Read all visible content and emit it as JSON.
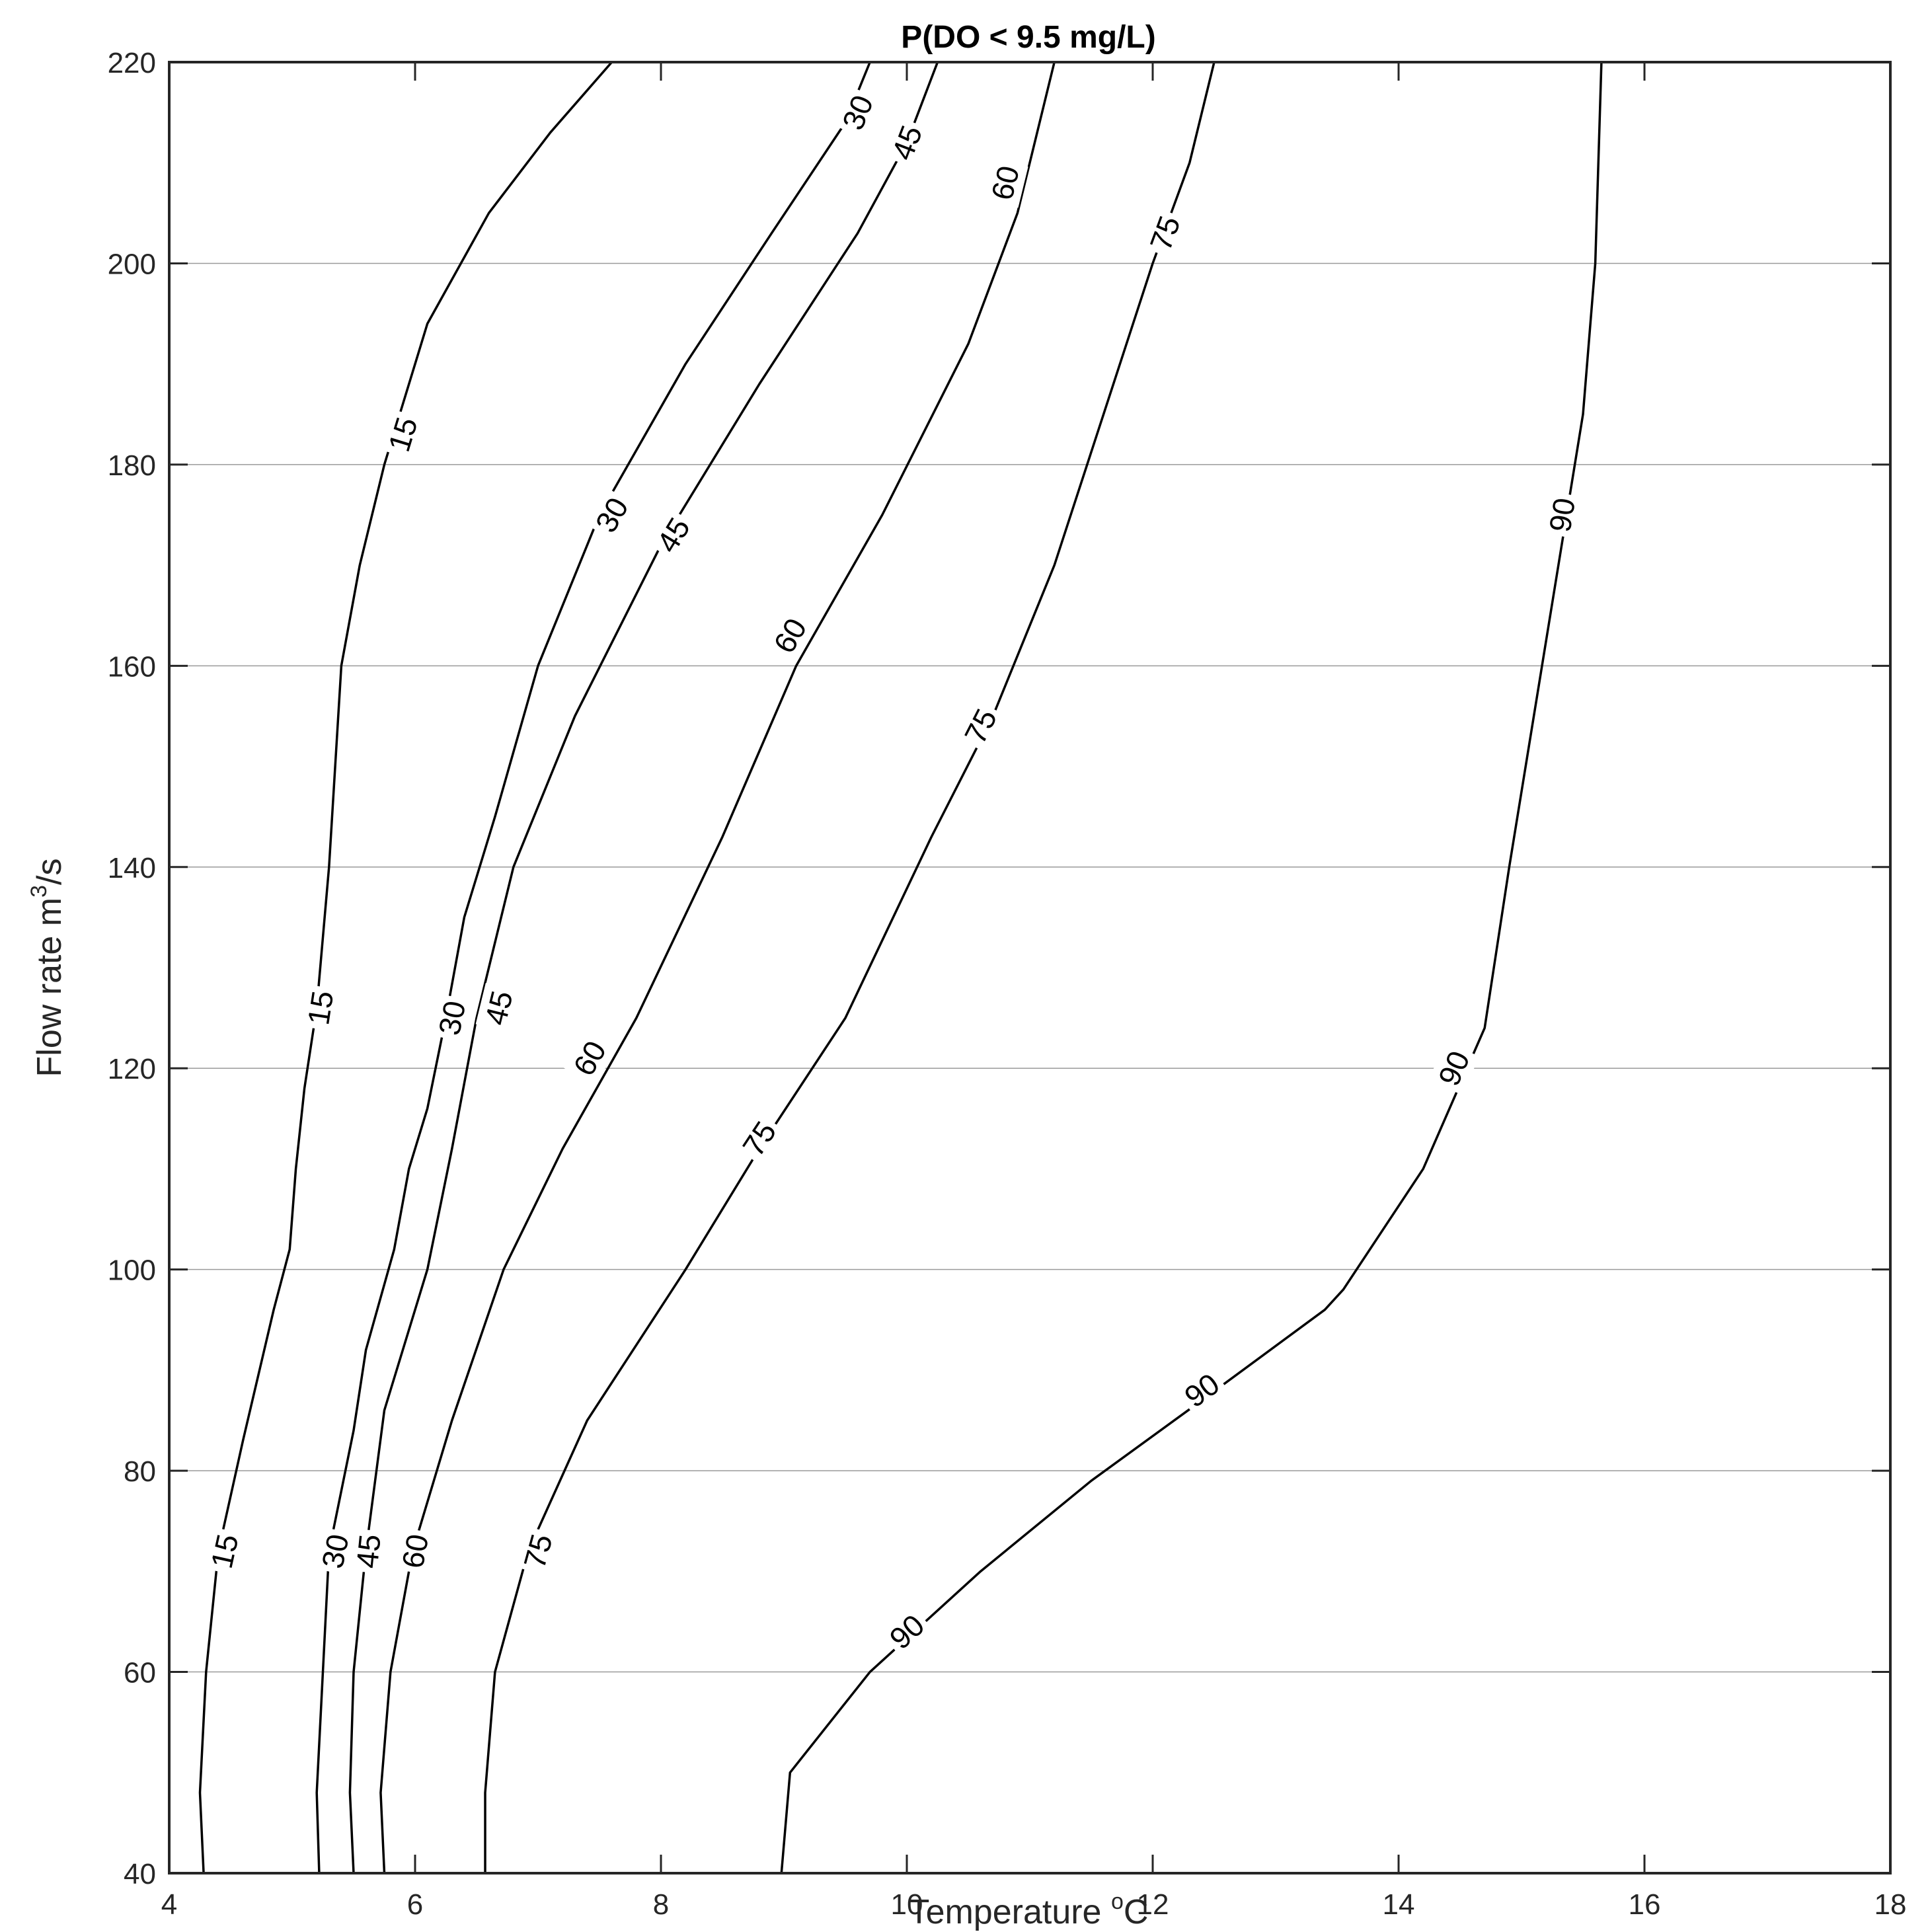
{
  "chart_data": {
    "type": "contour",
    "title": "P(DO < 9.5 mg/L)",
    "xlabel": "Temperature",
    "xlabel_unit": "C",
    "xlabel_unit_sup": "o",
    "ylabel": "Flow rate m",
    "ylabel_sup": "3",
    "ylabel_tail": "/s",
    "xlim": [
      4,
      18
    ],
    "ylim": [
      40,
      220
    ],
    "xticks": [
      4,
      6,
      8,
      10,
      12,
      14,
      16,
      18
    ],
    "yticks": [
      40,
      60,
      80,
      100,
      120,
      140,
      160,
      180,
      200,
      220
    ],
    "grid": false,
    "contours": [
      {
        "level": 15,
        "points": [
          [
            4.28,
            40
          ],
          [
            4.25,
            48
          ],
          [
            4.3,
            60
          ],
          [
            4.4,
            72
          ],
          [
            4.6,
            83
          ],
          [
            4.85,
            96
          ],
          [
            4.98,
            102
          ],
          [
            5.03,
            110
          ],
          [
            5.1,
            118
          ],
          [
            5.2,
            126
          ],
          [
            5.3,
            140
          ],
          [
            5.4,
            160
          ],
          [
            5.55,
            170
          ],
          [
            5.75,
            180
          ],
          [
            6.1,
            194
          ],
          [
            6.6,
            205
          ],
          [
            7.1,
            213
          ],
          [
            7.6,
            220
          ]
        ],
        "labels": [
          [
            4.45,
            72
          ],
          [
            5.23,
            126
          ],
          [
            5.9,
            183
          ]
        ]
      },
      {
        "level": 30,
        "points": [
          [
            5.22,
            40
          ],
          [
            5.2,
            48
          ],
          [
            5.25,
            60
          ],
          [
            5.3,
            72
          ],
          [
            5.5,
            84
          ],
          [
            5.6,
            92
          ],
          [
            5.83,
            102
          ],
          [
            5.95,
            110
          ],
          [
            6.1,
            116
          ],
          [
            6.25,
            125
          ],
          [
            6.4,
            135
          ],
          [
            6.65,
            145
          ],
          [
            7.0,
            160
          ],
          [
            7.5,
            175
          ],
          [
            8.2,
            190
          ],
          [
            8.9,
            203
          ],
          [
            9.5,
            214
          ],
          [
            9.7,
            220
          ]
        ],
        "labels": [
          [
            5.35,
            72
          ],
          [
            6.3,
            125
          ],
          [
            7.6,
            175
          ],
          [
            9.6,
            215
          ]
        ]
      },
      {
        "level": 45,
        "points": [
          [
            5.5,
            40
          ],
          [
            5.47,
            48
          ],
          [
            5.5,
            60
          ],
          [
            5.6,
            72
          ],
          [
            5.75,
            86
          ],
          [
            6.1,
            100
          ],
          [
            6.3,
            112
          ],
          [
            6.5,
            125
          ],
          [
            6.8,
            140
          ],
          [
            7.3,
            155
          ],
          [
            8.0,
            172
          ],
          [
            8.8,
            188
          ],
          [
            9.6,
            203
          ],
          [
            10.0,
            212
          ],
          [
            10.25,
            220
          ]
        ],
        "labels": [
          [
            5.62,
            72
          ],
          [
            6.68,
            126
          ],
          [
            8.1,
            173
          ],
          [
            10.0,
            212
          ]
        ]
      },
      {
        "level": 60,
        "points": [
          [
            5.75,
            40
          ],
          [
            5.72,
            48
          ],
          [
            5.8,
            60
          ],
          [
            5.98,
            72
          ],
          [
            6.3,
            85
          ],
          [
            6.72,
            100
          ],
          [
            7.2,
            112
          ],
          [
            7.8,
            125
          ],
          [
            8.5,
            143
          ],
          [
            9.1,
            160
          ],
          [
            9.8,
            175
          ],
          [
            10.5,
            192
          ],
          [
            10.9,
            205
          ],
          [
            11.2,
            220
          ]
        ],
        "labels": [
          [
            6.0,
            72
          ],
          [
            7.42,
            121
          ],
          [
            9.05,
            163
          ],
          [
            10.8,
            208
          ]
        ]
      },
      {
        "level": 75,
        "points": [
          [
            6.57,
            40
          ],
          [
            6.57,
            48
          ],
          [
            6.65,
            60
          ],
          [
            6.92,
            72
          ],
          [
            7.4,
            85
          ],
          [
            8.2,
            100
          ],
          [
            8.8,
            112
          ],
          [
            9.5,
            125
          ],
          [
            10.2,
            143
          ],
          [
            10.7,
            155
          ],
          [
            11.2,
            170
          ],
          [
            11.6,
            185
          ],
          [
            12.0,
            200
          ],
          [
            12.3,
            210
          ],
          [
            12.5,
            220
          ]
        ],
        "labels": [
          [
            7.0,
            72
          ],
          [
            8.8,
            113
          ],
          [
            10.6,
            154
          ],
          [
            12.1,
            203
          ]
        ]
      },
      {
        "level": 90,
        "points": [
          [
            8.98,
            40
          ],
          [
            9.05,
            50
          ],
          [
            9.7,
            60
          ],
          [
            10.6,
            70
          ],
          [
            11.5,
            79
          ],
          [
            12.4,
            87
          ],
          [
            13.4,
            96
          ],
          [
            13.55,
            98
          ],
          [
            14.2,
            110
          ],
          [
            14.7,
            124
          ],
          [
            14.9,
            140
          ],
          [
            15.1,
            155
          ],
          [
            15.3,
            170
          ],
          [
            15.5,
            185
          ],
          [
            15.6,
            200
          ],
          [
            15.65,
            220
          ]
        ],
        "labels": [
          [
            10.0,
            64
          ],
          [
            12.4,
            88
          ],
          [
            14.45,
            120
          ],
          [
            15.33,
            175
          ]
        ]
      }
    ]
  }
}
